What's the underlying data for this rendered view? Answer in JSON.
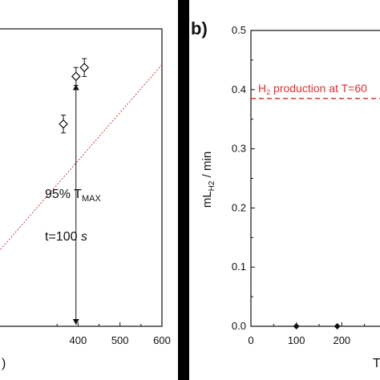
{
  "chart_data": [
    {
      "panel": "a",
      "type": "scatter",
      "x_ticks": [
        400,
        500,
        600
      ],
      "xlim": [
        210,
        600
      ],
      "ylim": [
        0,
        1
      ],
      "series": [
        {
          "marker": "diamond",
          "color": "#111111",
          "x": [
            365,
            395,
            415
          ],
          "y": [
            0.68,
            0.84,
            0.87
          ],
          "err": [
            0.03,
            0.03,
            0.03
          ]
        },
        {
          "line": "dotted",
          "color": "#d04040",
          "x": [
            210,
            600
          ],
          "y": [
            0.25,
            0.88
          ]
        }
      ],
      "annotations": {
        "temp_main": "95% T",
        "temp_sub": "MAX",
        "time_prefix": "t=100 ",
        "time_unit": "s"
      },
      "xlabel_fragment": ")",
      "vertical_arrow_x": 395
    },
    {
      "panel": "b",
      "type": "scatter",
      "panel_label": "b)",
      "ylabel_main": "mL",
      "ylabel_sub": "H2",
      "ylabel_suffix": " / min",
      "y_ticks": [
        "0.0",
        "0.1",
        "0.2",
        "0.3",
        "0.4",
        "0.5"
      ],
      "x_ticks": [
        "0",
        "100",
        "200"
      ],
      "ylim": [
        0,
        0.5
      ],
      "xlim": [
        0,
        300
      ],
      "series": [
        {
          "marker": "diamond-filled",
          "color": "#111111",
          "x": [
            100,
            190
          ],
          "y": [
            0.0,
            0.0
          ]
        }
      ],
      "reference_line": {
        "y": 0.385,
        "color": "#e03030",
        "style": "dashed",
        "label_prefix": "H",
        "label_sub": "2",
        "label_suffix": " production at T=60"
      },
      "xlabel_fragment": "T"
    }
  ]
}
